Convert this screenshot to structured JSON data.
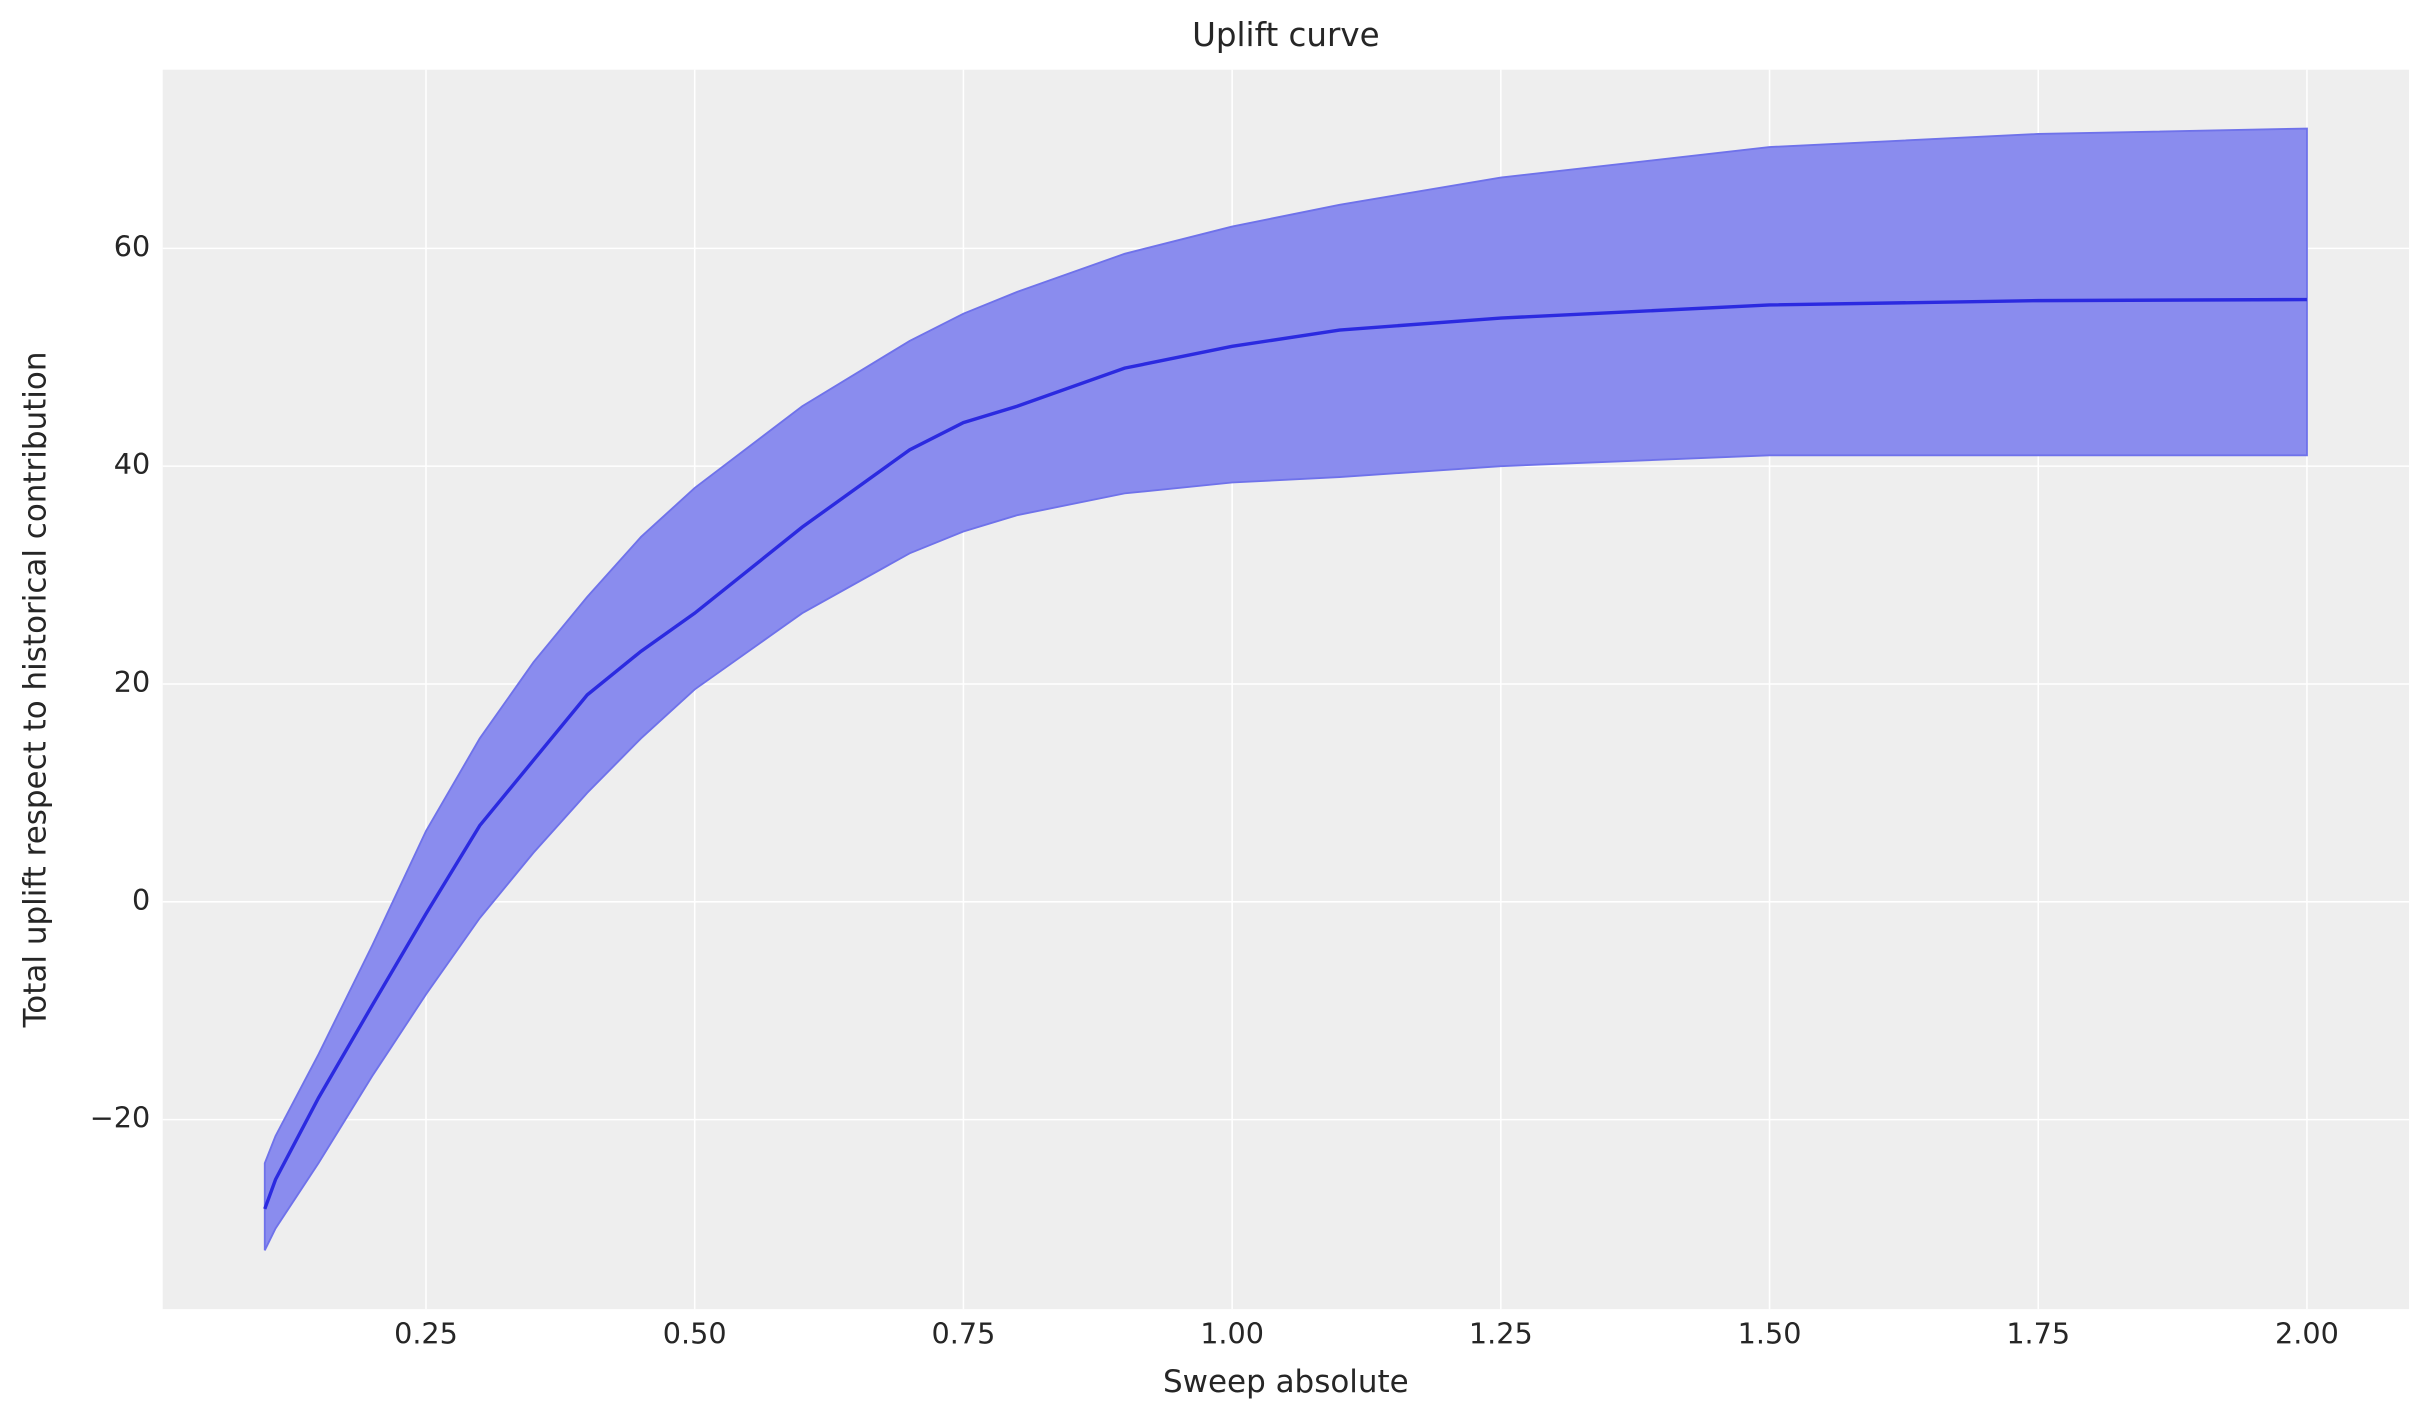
{
  "chart_data": {
    "type": "line",
    "title": "Uplift curve",
    "x_label": "Sweep absolute",
    "y_label": "Total uplift respect to historical contribution",
    "x": [
      0.1,
      0.11,
      0.15,
      0.2,
      0.25,
      0.3,
      0.35,
      0.4,
      0.45,
      0.5,
      0.6,
      0.7,
      0.75,
      0.8,
      0.9,
      1.0,
      1.1,
      1.25,
      1.5,
      1.75,
      2.0
    ],
    "series": [
      {
        "color": "#2b2ae0",
        "values": [
          -28.2,
          -25.5,
          -18,
          -9.5,
          -1.1,
          7,
          13,
          19,
          23,
          26.5,
          34.4,
          41.5,
          44,
          45.5,
          49,
          51,
          52.5,
          53.6,
          54.8,
          55.2,
          55.3
        ]
      }
    ],
    "band": {
      "color": "#8a8cee",
      "lower": [
        -32,
        -30,
        -24,
        -16,
        -8.5,
        -1.5,
        4.5,
        10,
        15,
        19.5,
        26.5,
        32,
        34,
        35.5,
        37.5,
        38.5,
        39,
        40,
        41,
        41,
        41
      ],
      "upper": [
        -24,
        -21.5,
        -14,
        -4,
        6.5,
        15,
        22,
        28,
        33.5,
        38,
        45.5,
        51.5,
        54,
        56,
        59.5,
        62,
        64,
        66.5,
        69.3,
        70.5,
        71
      ]
    },
    "xlim": [
      0.005,
      2.095
    ],
    "ylim": [
      -37.4,
      76.4
    ],
    "xticks": [
      0.25,
      {
        "value": 0.5,
        "label": "0.50"
      },
      0.75,
      {
        "value": 1,
        "label": "1.00"
      },
      1.25,
      {
        "value": 1.5,
        "label": "1.50"
      },
      1.75,
      {
        "value": 2,
        "label": "2.00"
      }
    ],
    "yticks": [
      {
        "value": -20,
        "label": "−20"
      },
      0,
      20,
      40,
      60
    ],
    "grid": true,
    "background": "#eeeeee"
  }
}
